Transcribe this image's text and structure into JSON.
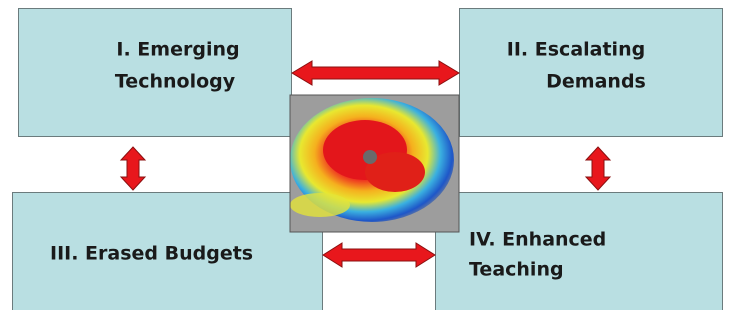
{
  "nodes": [
    {
      "label": [
        "I. Emerging",
        "Technology"
      ]
    },
    {
      "label": [
        "II. Escalating",
        "Demands"
      ]
    },
    {
      "label": [
        "III. Erased Budgets"
      ]
    },
    {
      "label": [
        "IV. Enhanced",
        "Teaching"
      ]
    }
  ]
}
